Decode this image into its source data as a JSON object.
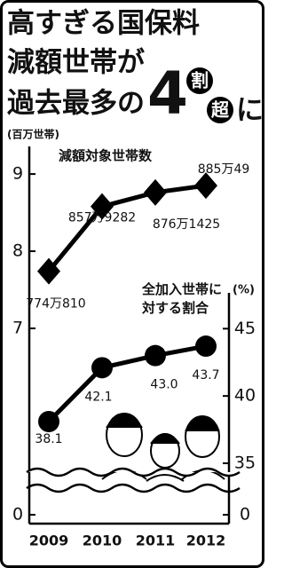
{
  "chart_data": {
    "type": "line",
    "title": [
      "高すぎる国保料",
      "減額世帯が",
      "過去最多の",
      "4",
      "割",
      "超",
      "に"
    ],
    "ylabel": "(百万世帯)",
    "y2label": "(%)",
    "categories": [
      "2009",
      "2010",
      "2011",
      "2012"
    ],
    "ylim": [
      0,
      9.3
    ],
    "yticks": [
      0,
      7,
      8,
      9
    ],
    "y2lim": [
      0,
      47
    ],
    "y2ticks": [
      0,
      35,
      40,
      45
    ],
    "series": [
      {
        "name": "減額対象世帯数",
        "color": "#000000",
        "marker": "diamond",
        "values": [
          7.74081,
          8.579282,
          8.761425,
          8.850049
        ],
        "value_labels": [
          "774万810",
          "857万9282",
          "876万1425",
          "885万49"
        ]
      },
      {
        "name": "全加入世帯に対する割合",
        "color": "#000000",
        "marker": "circle",
        "axis": "y2",
        "values": [
          38.1,
          42.1,
          43.0,
          43.7
        ],
        "value_labels": [
          "38.1",
          "42.1",
          "43.0",
          "43.7"
        ]
      }
    ]
  }
}
